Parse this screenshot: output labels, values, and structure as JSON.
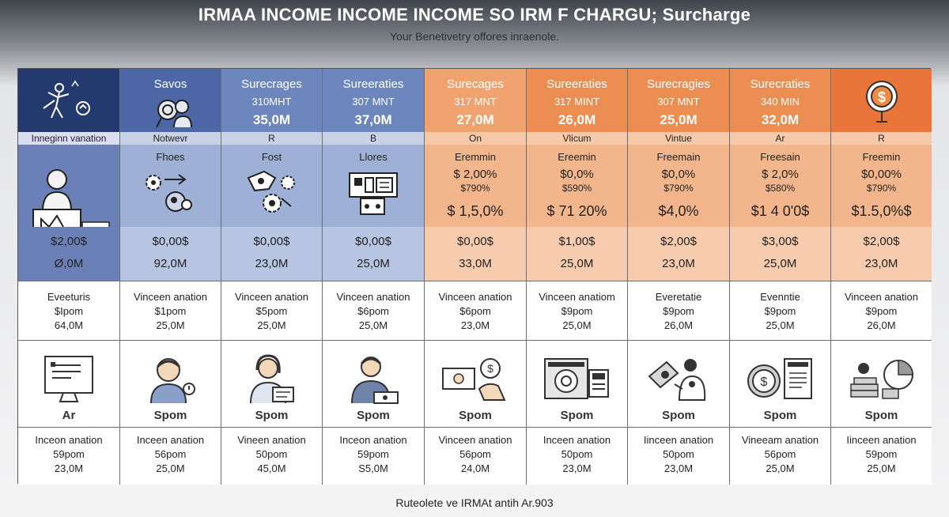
{
  "title": "IRMAA INCOME INCOME INCOME SO IRM F CHARGU; Surcharge",
  "subtitle": "Your Benetivetry offores inraenole.",
  "footer": "Ruteolete ve IRMAt antih Ar.903",
  "columns": [
    {
      "header_title": "",
      "header_sub": "",
      "header_value": "",
      "icon": "person-arrow-icon",
      "band": "Inneginn vanation",
      "mid_label": "",
      "mid_pct1": "",
      "mid_pct2": "",
      "mid_big": "",
      "mid_icon": "presenter-icon",
      "val1": "$2,00$",
      "val2": "Ø,0M",
      "r3": [
        "Eveeturis",
        "$Ipom",
        "64,0M"
      ],
      "r4_icon": "computer-screen-icon",
      "r4_label": "Ar",
      "r5": [
        "Inceon anation",
        "59pom",
        "23,0M"
      ]
    },
    {
      "header_title": "Savos",
      "header_sub": "",
      "header_value": "",
      "icon": "magnifier-person-icon",
      "band": "Notwevr",
      "mid_label": "Fhoes",
      "mid_pct1": "",
      "mid_pct2": "",
      "mid_big": "",
      "mid_icon": "gears-person-icon",
      "val1": "$0,00$",
      "val2": "92,0M",
      "r3": [
        "Vinceen anation",
        "$1pom",
        "25,0M"
      ],
      "r4_icon": "person-avatar-icon",
      "r4_label": "Spom",
      "r5": [
        "Inceen anation",
        "56pom",
        "25,0M"
      ]
    },
    {
      "header_title": "Surecrages",
      "header_sub": "310MHT",
      "header_value": "35,0M",
      "icon": "",
      "band": "R",
      "mid_label": "Fost",
      "mid_pct1": "",
      "mid_pct2": "",
      "mid_big": "",
      "mid_icon": "gear-hand-icon",
      "val1": "$0,00$",
      "val2": "23,0M",
      "r3": [
        "Vinceen anation",
        "$5pom",
        "25,0M"
      ],
      "r4_icon": "support-agent-icon",
      "r4_label": "Spom",
      "r5": [
        "Vineen anation",
        "50pom",
        "45,0M"
      ]
    },
    {
      "header_title": "Sureeraties",
      "header_sub": "307 MNT",
      "header_value": "37,0M",
      "icon": "",
      "band": "B",
      "mid_label": "Llores",
      "mid_pct1": "",
      "mid_pct2": "",
      "mid_big": "",
      "mid_icon": "building-calculator-icon",
      "val1": "$0,00$",
      "val2": "25,0M",
      "r3": [
        "Vinceen anation",
        "$6pom",
        "25,0M"
      ],
      "r4_icon": "person-desk-icon",
      "r4_label": "Spom",
      "r5": [
        "Inceon anation",
        "59pom",
        "S5,0M"
      ]
    },
    {
      "header_title": "Surecages",
      "header_sub": "317 MNT",
      "header_value": "27,0M",
      "icon": "",
      "band": "On",
      "mid_label": "Eremmin",
      "mid_pct1": "$ 2,00%",
      "mid_pct2": "$790%",
      "mid_big": "$ 1,5,0%",
      "mid_icon": "",
      "val1": "$0,00$",
      "val2": "33,0M",
      "r3": [
        "Vinceen anation",
        "$6pom",
        "23,0M"
      ],
      "r4_icon": "money-hand-icon",
      "r4_label": "Spom",
      "r5": [
        "Vinceen anation",
        "56pom",
        "24,0M"
      ]
    },
    {
      "header_title": "Sureeraties",
      "header_sub": "317 MINT",
      "header_value": "26,0M",
      "icon": "",
      "band": "Vlicum",
      "mid_label": "Ereemin",
      "mid_pct1": "$0,0%",
      "mid_pct2": "$590%",
      "mid_big": "$ 71 20%",
      "mid_icon": "",
      "val1": "$1,00$",
      "val2": "25,0M",
      "r3": [
        "Vinceen anatiom",
        "$9pom",
        "25,0M"
      ],
      "r4_icon": "safe-calculator-icon",
      "r4_label": "Spom",
      "r5": [
        "Inceen anation",
        "50pom",
        "23,0M"
      ]
    },
    {
      "header_title": "Surecragies",
      "header_sub": "307 MNT",
      "header_value": "25,0M",
      "icon": "",
      "band": "Vintue",
      "mid_label": "Freemain",
      "mid_pct1": "$0,0%",
      "mid_pct2": "$790%",
      "mid_big": "$4,0%",
      "mid_icon": "",
      "val1": "$2,00$",
      "val2": "23,0M",
      "r3": [
        "Everetatie",
        "$9pom",
        "26,0M"
      ],
      "r4_icon": "money-bag-person-icon",
      "r4_label": "Spom",
      "r5": [
        "Iinceen anation",
        "50pom",
        "23,0M"
      ]
    },
    {
      "header_title": "Surecraties",
      "header_sub": "340 MIN",
      "header_value": "32,0M",
      "icon": "",
      "band": "Ar",
      "mid_label": "Freesain",
      "mid_pct1": "$ 2,0%",
      "mid_pct2": "$580%",
      "mid_big": "$1 4 0'0$",
      "mid_icon": "",
      "val1": "$3,00$",
      "val2": "25,0M",
      "r3": [
        "Evenntie",
        "$9pom",
        "25,0M"
      ],
      "r4_icon": "coin-receipt-icon",
      "r4_label": "Spom",
      "r5": [
        "Vineeam anation",
        "56pom",
        "25,0M"
      ]
    },
    {
      "header_title": "",
      "header_sub": "",
      "header_value": "",
      "icon": "dollar-badge-icon",
      "band": "R",
      "mid_label": "Freemin",
      "mid_pct1": "$0,00%",
      "mid_pct2": "$790%",
      "mid_big": "$1.5,0%$",
      "mid_icon": "",
      "val1": "$2,00$",
      "val2": "23,0M",
      "r3": [
        "Vinceen anation",
        "$9pom",
        "26,0M"
      ],
      "r4_icon": "coins-pie-chart-icon",
      "r4_label": "Spom",
      "r5": [
        "Iinceen anation",
        "59pom",
        "25,0M"
      ]
    }
  ]
}
